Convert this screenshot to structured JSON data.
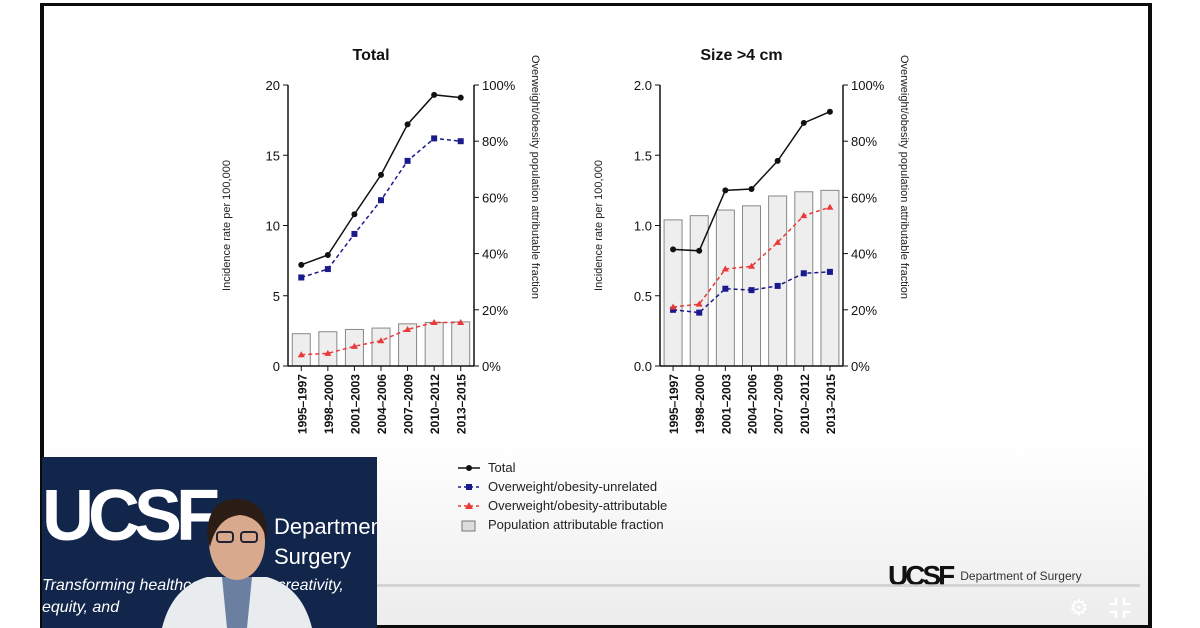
{
  "chart_data": [
    {
      "type": "bar+line",
      "title": "Total",
      "ylabel": "Incidence rate per 100,000",
      "y2label": "Overweight/obesity population attributable fraction",
      "ylim": [
        0,
        20
      ],
      "yticks": [
        "0",
        "5",
        "10",
        "15",
        "20"
      ],
      "y2lim": [
        0,
        100
      ],
      "y2ticks": [
        "0%",
        "20%",
        "40%",
        "60%",
        "80%",
        "100%"
      ],
      "categories": [
        "1995–1997",
        "1998–2000",
        "2001–2003",
        "2004–2006",
        "2007–2009",
        "2010–2012",
        "2013–2015"
      ],
      "series": [
        {
          "name": "Total",
          "axis": "left",
          "values": [
            7.2,
            7.9,
            10.8,
            13.6,
            17.2,
            19.3,
            19.1
          ]
        },
        {
          "name": "Overweight/obesity-unrelated",
          "axis": "left",
          "values": [
            6.3,
            6.9,
            9.4,
            11.8,
            14.6,
            16.2,
            16.0
          ]
        },
        {
          "name": "Overweight/obesity-attributable",
          "axis": "left",
          "values": [
            0.8,
            0.9,
            1.4,
            1.8,
            2.6,
            3.1,
            3.1
          ]
        },
        {
          "name": "Population attributable fraction",
          "axis": "right",
          "type": "bar",
          "values": [
            11.5,
            12.2,
            13,
            13.5,
            15,
            15.5,
            15.7
          ]
        }
      ]
    },
    {
      "type": "bar+line",
      "title": "Size >4 cm",
      "ylabel": "Incidence rate per 100,000",
      "y2label": "Overweight/obesity population attributable fraction",
      "ylim": [
        0,
        2
      ],
      "yticks": [
        "0.0",
        "0.5",
        "1.0",
        "1.5",
        "2.0"
      ],
      "y2lim": [
        0,
        100
      ],
      "y2ticks": [
        "0%",
        "20%",
        "40%",
        "60%",
        "80%",
        "100%"
      ],
      "categories": [
        "1995–1997",
        "1998–2000",
        "2001–2003",
        "2004–2006",
        "2007–2009",
        "2010–2012",
        "2013–2015"
      ],
      "series": [
        {
          "name": "Total",
          "axis": "left",
          "values": [
            0.83,
            0.82,
            1.25,
            1.26,
            1.46,
            1.73,
            1.81
          ]
        },
        {
          "name": "Overweight/obesity-unrelated",
          "axis": "left",
          "values": [
            0.4,
            0.38,
            0.55,
            0.54,
            0.57,
            0.66,
            0.67
          ]
        },
        {
          "name": "Overweight/obesity-attributable",
          "axis": "left",
          "values": [
            0.42,
            0.44,
            0.69,
            0.71,
            0.88,
            1.07,
            1.13
          ]
        },
        {
          "name": "Population attributable fraction",
          "axis": "right",
          "type": "bar",
          "values": [
            52,
            53.5,
            55.5,
            57,
            60.5,
            62,
            62.5
          ]
        }
      ]
    }
  ],
  "legend": [
    "Total",
    "Overweight/obesity-unrelated",
    "Overweight/obesity-attributable",
    "Population attributable fraction"
  ],
  "colors": {
    "total": "#111111",
    "unrelated": "#1a1a8c",
    "attributable": "#e83a3a",
    "bar": "#eeeeee"
  },
  "webcam": {
    "logo": "UCSF",
    "dept": "Department",
    "dept2": "Surgery",
    "tagline1": "Transforming healthcare through creativity,",
    "tagline2": "equity, and"
  },
  "footer_logo": {
    "logo": "UCSF",
    "text": "Department of Surgery"
  },
  "controls": {
    "settings_icon": "gear-icon",
    "exit_fullscreen_icon": "exit-fullscreen-icon"
  }
}
